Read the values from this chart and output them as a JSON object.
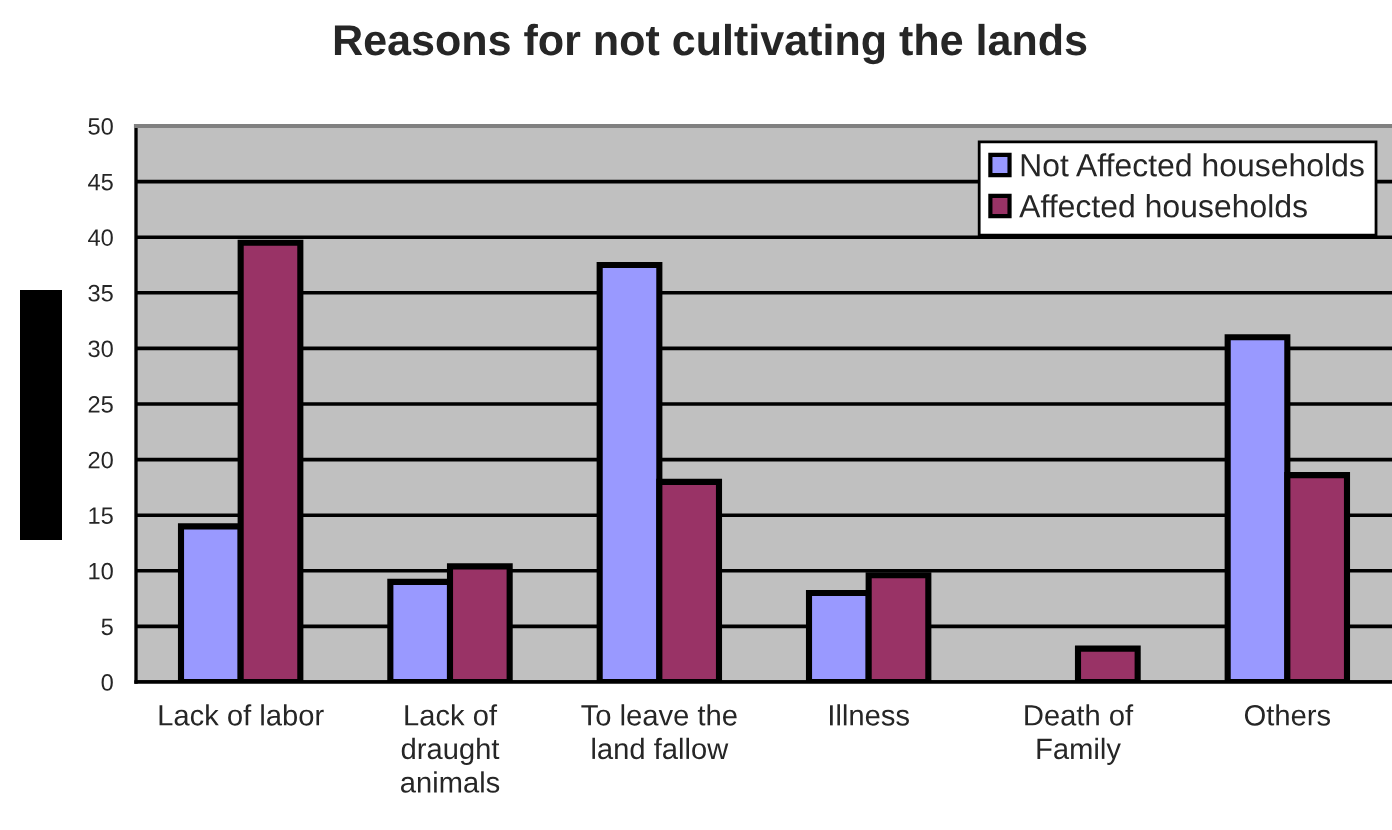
{
  "chart_data": {
    "type": "bar",
    "title": "Reasons for not cultivating the lands",
    "categories": [
      "Lack of labor",
      "Lack of\ndraught\nanimals",
      "To leave the\nland fallow",
      "Illness",
      "Death of\nFamily",
      "Others"
    ],
    "series": [
      {
        "name": "Not Affected households",
        "color": "#9999ff",
        "values": [
          14,
          9,
          37.5,
          8,
          null,
          31
        ]
      },
      {
        "name": "Affected households",
        "color": "#993366",
        "values": [
          39.5,
          10.4,
          18,
          9.6,
          3,
          18.6
        ]
      }
    ],
    "ylim": [
      0,
      50
    ],
    "yticks": [
      0,
      5,
      10,
      15,
      20,
      25,
      30,
      35,
      40,
      45,
      50
    ],
    "grid": "y",
    "legend": "top right"
  }
}
